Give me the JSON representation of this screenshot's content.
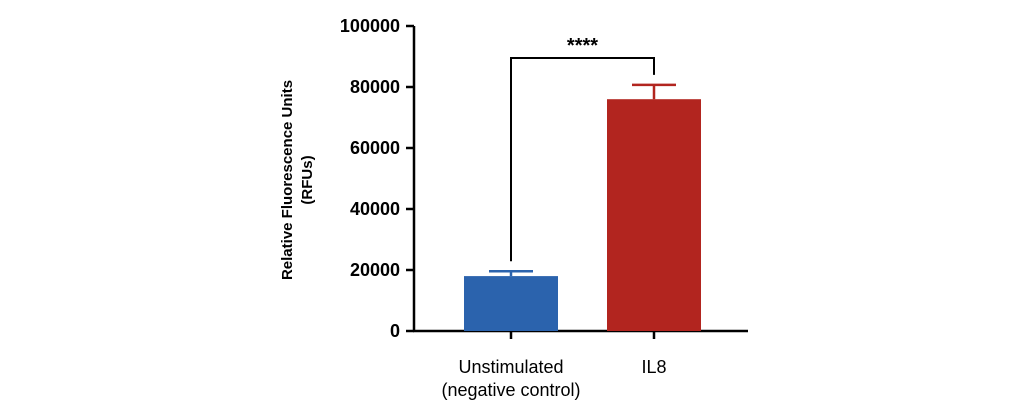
{
  "chart_data": {
    "type": "bar",
    "title": "",
    "xlabel": "",
    "ylabel": [
      "Relative Fluorescence Units",
      "(RFUs)"
    ],
    "ylim": [
      0,
      100000
    ],
    "yticks": [
      0,
      20000,
      40000,
      60000,
      80000,
      100000
    ],
    "tick_labels": [
      "0",
      "20000",
      "40000",
      "60000",
      "80000",
      "100000"
    ],
    "categories": [
      [
        "Unstimulated",
        "(negative control)"
      ],
      [
        "IL8"
      ]
    ],
    "values": [
      18000,
      76000
    ],
    "error_upper": [
      19600,
      80700
    ],
    "colors": [
      "#2b63ad",
      "#b2251f"
    ],
    "significance": {
      "between": [
        0,
        1
      ],
      "label": "****"
    },
    "grid": false,
    "legend": "none"
  }
}
